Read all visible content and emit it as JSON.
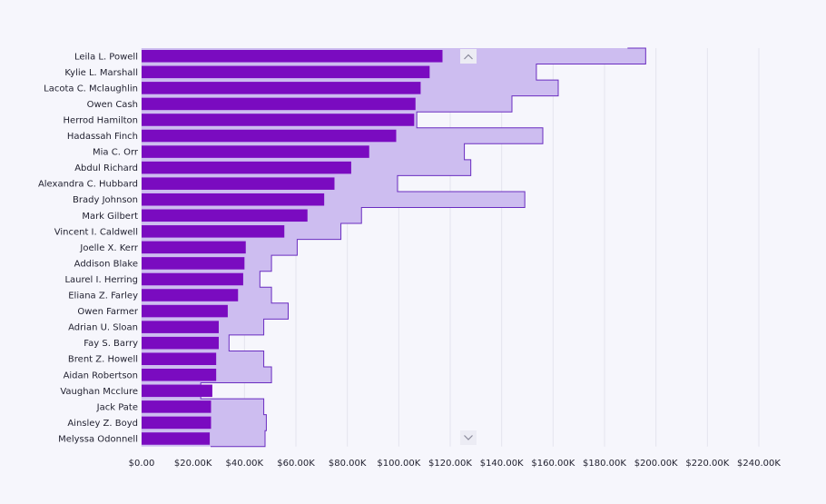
{
  "chart_data": {
    "type": "bar",
    "orientation": "horizontal",
    "title": "",
    "xlabel": "",
    "ylabel": "",
    "xlim": [
      0,
      240000
    ],
    "grid": true,
    "x_ticks": [
      0,
      20000,
      40000,
      60000,
      80000,
      100000,
      120000,
      140000,
      160000,
      180000,
      200000,
      220000,
      240000
    ],
    "x_tick_labels": [
      "$0.00",
      "$20.00K",
      "$40.00K",
      "$60.00K",
      "$80.00K",
      "$100.00K",
      "$120.00K",
      "$140.00K",
      "$160.00K",
      "$180.00K",
      "$200.00K",
      "$220.00K",
      "$240.00K"
    ],
    "categories": [
      "Leila L. Powell",
      "Kylie L. Marshall",
      "Lacota C. Mclaughlin",
      "Owen Cash",
      "Herrod Hamilton",
      "Hadassah Finch",
      "Mia C. Orr",
      "Abdul Richard",
      "Alexandra C. Hubbard",
      "Brady Johnson",
      "Mark Gilbert",
      "Vincent I. Caldwell",
      "Joelle X. Kerr",
      "Addison Blake",
      "Laurel I. Herring",
      "Eliana Z. Farley",
      "Owen Farmer",
      "Adrian U. Sloan",
      "Fay S. Barry",
      "Brent Z. Howell",
      "Aidan Robertson",
      "Vaughan Mcclure",
      "Jack Pate",
      "Ainsley Z. Boyd",
      "Melyssa Odonnell"
    ],
    "series": [
      {
        "name": "Sales",
        "kind": "bar",
        "color": "#7A0BC0",
        "values": [
          117000,
          112000,
          108500,
          106500,
          106000,
          99000,
          88500,
          81500,
          75000,
          71000,
          64500,
          55500,
          40500,
          40000,
          39500,
          37500,
          33500,
          30000,
          30000,
          29000,
          29000,
          27500,
          27000,
          27000,
          26500
        ]
      },
      {
        "name": "Target",
        "kind": "step-area",
        "color": "#CDBDF0",
        "line_color": "#6A2DC0",
        "values": [
          196000,
          153500,
          162000,
          144000,
          107000,
          156000,
          125500,
          128000,
          99500,
          149000,
          85500,
          77500,
          60500,
          50500,
          46000,
          50500,
          57000,
          47500,
          34000,
          47500,
          50500,
          23000,
          47500,
          48500,
          48000
        ]
      }
    ]
  },
  "colors": {
    "background": "#F6F6FC",
    "gridline": "#E4E4EE",
    "bar": "#7A0BC0",
    "target_fill": "#CDBDF0",
    "target_line": "#6A2DC0"
  },
  "icons": {
    "scroll_up": "chevron-up-icon",
    "scroll_down": "chevron-down-icon"
  }
}
